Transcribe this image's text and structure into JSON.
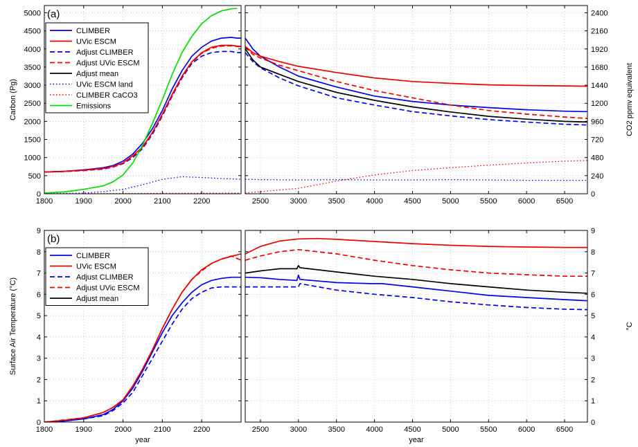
{
  "chart_data": [
    {
      "type": "line",
      "panel_tag": "(a)",
      "ylabel": "Carbon (Pg)",
      "ylabel_right": "CO2 ppmv equivalent",
      "xlabel": "",
      "left_xlim": [
        1800,
        2300
      ],
      "right_xlim": [
        2300,
        6800
      ],
      "ylim": [
        0,
        5200
      ],
      "left_xticks": [
        "1800",
        "1900",
        "2000",
        "2100",
        "2200"
      ],
      "right_xticks": [
        "2500",
        "3000",
        "3500",
        "4000",
        "4500",
        "5000",
        "5500",
        "6000",
        "6500"
      ],
      "yticks": [
        "0",
        "500",
        "1000",
        "1500",
        "2000",
        "2500",
        "3000",
        "3500",
        "4000",
        "4500",
        "5000"
      ],
      "yticks_right": [
        "0",
        "240",
        "480",
        "720",
        "960",
        "1200",
        "1440",
        "1680",
        "1920",
        "2160",
        "2400"
      ],
      "grid": true,
      "legend_position": "top-left",
      "series": [
        {
          "name": "CLIMBER",
          "color": "#0000ee",
          "dash": "solid",
          "x": [
            1800,
            1850,
            1900,
            1950,
            1975,
            2000,
            2025,
            2050,
            2075,
            2100,
            2125,
            2150,
            2175,
            2200,
            2225,
            2250,
            2275,
            2290,
            2300,
            2400,
            2500,
            2750,
            3000,
            3500,
            4000,
            4500,
            5000,
            5500,
            6000,
            6500,
            6800
          ],
          "y": [
            600,
            620,
            660,
            720,
            780,
            900,
            1100,
            1400,
            1800,
            2300,
            2900,
            3400,
            3800,
            4050,
            4220,
            4300,
            4320,
            4300,
            4300,
            4000,
            3800,
            3500,
            3250,
            2950,
            2700,
            2550,
            2450,
            2380,
            2320,
            2280,
            2270
          ]
        },
        {
          "name": "UVic ESCM",
          "color": "#ee0000",
          "dash": "solid",
          "x": [
            1800,
            1850,
            1900,
            1950,
            1975,
            2000,
            2025,
            2050,
            2075,
            2100,
            2125,
            2150,
            2175,
            2200,
            2225,
            2250,
            2275,
            2290,
            2300,
            2400,
            2500,
            2750,
            3000,
            3500,
            4000,
            4500,
            5000,
            5500,
            6000,
            6500,
            6800
          ],
          "y": [
            600,
            620,
            650,
            700,
            760,
            850,
            1050,
            1300,
            1700,
            2200,
            2750,
            3250,
            3650,
            3900,
            4050,
            4100,
            4100,
            4080,
            4070,
            3900,
            3800,
            3650,
            3520,
            3350,
            3200,
            3100,
            3050,
            3010,
            2990,
            2980,
            2970
          ]
        },
        {
          "name": "Adjust CLIMBER",
          "color": "#0000ee",
          "dash": "dashed",
          "x": [
            1800,
            1850,
            1900,
            1950,
            1975,
            2000,
            2025,
            2050,
            2075,
            2100,
            2125,
            2150,
            2175,
            2200,
            2225,
            2250,
            2275,
            2290,
            2300,
            2400,
            2500,
            2750,
            3000,
            3500,
            4000,
            4500,
            5000,
            5500,
            6000,
            6500,
            6800
          ],
          "y": [
            600,
            615,
            640,
            680,
            740,
            830,
            1000,
            1250,
            1650,
            2150,
            2700,
            3200,
            3600,
            3800,
            3900,
            3930,
            3930,
            3900,
            3900,
            3650,
            3480,
            3200,
            2980,
            2650,
            2450,
            2270,
            2150,
            2050,
            1980,
            1920,
            1900
          ]
        },
        {
          "name": "Adjust UVic ESCM",
          "color": "#ee0000",
          "dash": "dashed",
          "x": [
            1800,
            1850,
            1900,
            1950,
            1975,
            2000,
            2025,
            2050,
            2075,
            2100,
            2125,
            2150,
            2175,
            2200,
            2225,
            2250,
            2275,
            2290,
            2300,
            2400,
            2500,
            2750,
            3000,
            3500,
            4000,
            4500,
            5000,
            5500,
            6000,
            6500,
            6800
          ],
          "y": [
            600,
            615,
            645,
            690,
            750,
            840,
            1030,
            1280,
            1680,
            2180,
            2720,
            3230,
            3630,
            3880,
            4020,
            4080,
            4090,
            4070,
            4050,
            3850,
            3750,
            3550,
            3400,
            3100,
            2850,
            2650,
            2450,
            2300,
            2200,
            2120,
            2080
          ]
        },
        {
          "name": "Adjust mean",
          "color": "#000000",
          "dash": "solid",
          "x": [
            2300,
            2400,
            2500,
            2750,
            3000,
            3500,
            4000,
            4500,
            5000,
            5500,
            6000,
            6500,
            6800
          ],
          "y": [
            4000,
            3700,
            3500,
            3300,
            3100,
            2800,
            2580,
            2400,
            2260,
            2140,
            2060,
            2000,
            1980
          ]
        },
        {
          "name": "UVic ESCM land",
          "color": "#0000ee",
          "dash": "dotted",
          "x": [
            1800,
            1900,
            1950,
            2000,
            2050,
            2100,
            2150,
            2200,
            2250,
            2300,
            2500,
            3000,
            3500,
            4000,
            4500,
            5000,
            5500,
            6000,
            6500,
            6800
          ],
          "y": [
            0,
            20,
            60,
            120,
            250,
            400,
            470,
            450,
            420,
            400,
            390,
            380,
            390,
            380,
            380,
            390,
            380,
            370,
            370,
            370
          ]
        },
        {
          "name": "CLIMBER CaCO3",
          "color": "#ee0000",
          "dash": "dotted",
          "x": [
            1800,
            2000,
            2200,
            2300,
            2500,
            3000,
            3500,
            4000,
            4500,
            5000,
            5500,
            6000,
            6500,
            6800
          ],
          "y": [
            0,
            5,
            15,
            20,
            60,
            150,
            350,
            520,
            640,
            720,
            790,
            850,
            900,
            920
          ]
        },
        {
          "name": "Emissions",
          "color": "#00dd00",
          "dash": "solid",
          "x": [
            1800,
            1850,
            1900,
            1950,
            1975,
            2000,
            2025,
            2050,
            2075,
            2100,
            2125,
            2150,
            2175,
            2200,
            2225,
            2250,
            2275,
            2290
          ],
          "y": [
            20,
            50,
            120,
            220,
            330,
            520,
            850,
            1350,
            1950,
            2600,
            3300,
            3900,
            4350,
            4700,
            4920,
            5050,
            5110,
            5120
          ]
        }
      ]
    },
    {
      "type": "line",
      "panel_tag": "(b)",
      "ylabel": "Surface Air Temperature (°C)",
      "ylabel_right": "°C",
      "xlabel": "year",
      "left_xlim": [
        1800,
        2300
      ],
      "right_xlim": [
        2300,
        6800
      ],
      "ylim": [
        0,
        9
      ],
      "left_xticks": [
        "1800",
        "1900",
        "2000",
        "2100",
        "2200"
      ],
      "right_xticks": [
        "2500",
        "3000",
        "3500",
        "4000",
        "4500",
        "5000",
        "5500",
        "6000",
        "6500"
      ],
      "yticks": [
        "0",
        "1",
        "2",
        "3",
        "4",
        "5",
        "6",
        "7",
        "8",
        "9"
      ],
      "yticks_right": [
        "0",
        "1",
        "2",
        "3",
        "4",
        "5",
        "6",
        "7",
        "8",
        "9"
      ],
      "grid": true,
      "legend_position": "top-left",
      "series": [
        {
          "name": "CLIMBER",
          "color": "#0000ee",
          "dash": "solid",
          "x": [
            1800,
            1850,
            1900,
            1950,
            1975,
            2000,
            2025,
            2050,
            2075,
            2100,
            2125,
            2150,
            2175,
            2200,
            2225,
            2250,
            2275,
            2300,
            2500,
            2750,
            2980,
            3000,
            3020,
            3500,
            3950,
            4000,
            4100,
            4500,
            5000,
            5500,
            6000,
            6500,
            6800
          ],
          "y": [
            0,
            0.05,
            0.15,
            0.35,
            0.6,
            1.0,
            1.6,
            2.4,
            3.3,
            4.2,
            5.0,
            5.6,
            6.1,
            6.45,
            6.65,
            6.75,
            6.8,
            6.8,
            6.78,
            6.7,
            6.65,
            6.9,
            6.7,
            6.55,
            6.5,
            6.5,
            6.5,
            6.35,
            6.15,
            5.95,
            5.85,
            5.75,
            5.7
          ]
        },
        {
          "name": "UVic ESCM",
          "color": "#ee0000",
          "dash": "solid",
          "x": [
            1800,
            1850,
            1900,
            1950,
            1975,
            2000,
            2025,
            2050,
            2075,
            2100,
            2125,
            2150,
            2175,
            2200,
            2225,
            2250,
            2275,
            2300,
            2500,
            2750,
            3000,
            3250,
            3500,
            4000,
            4500,
            5000,
            5500,
            6000,
            6500,
            6800
          ],
          "y": [
            0,
            0.08,
            0.2,
            0.45,
            0.7,
            1.05,
            1.7,
            2.5,
            3.4,
            4.4,
            5.3,
            6.1,
            6.7,
            7.15,
            7.45,
            7.65,
            7.78,
            7.9,
            8.25,
            8.5,
            8.6,
            8.62,
            8.58,
            8.48,
            8.38,
            8.3,
            8.25,
            8.22,
            8.2,
            8.2
          ]
        },
        {
          "name": "Adjust CLIMBER",
          "color": "#0000ee",
          "dash": "dashed",
          "x": [
            1800,
            1850,
            1900,
            1950,
            1975,
            2000,
            2025,
            2050,
            2075,
            2100,
            2125,
            2150,
            2175,
            2200,
            2225,
            2250,
            2275,
            2300,
            2500,
            2750,
            3000,
            3020,
            3500,
            4000,
            4500,
            5000,
            5500,
            6000,
            6500,
            6800
          ],
          "y": [
            0,
            0.05,
            0.15,
            0.3,
            0.55,
            0.9,
            1.4,
            2.2,
            3.0,
            3.8,
            4.6,
            5.3,
            5.8,
            6.1,
            6.3,
            6.35,
            6.35,
            6.35,
            6.35,
            6.35,
            6.35,
            6.5,
            6.2,
            6.0,
            5.85,
            5.65,
            5.5,
            5.38,
            5.3,
            5.28
          ]
        },
        {
          "name": "Adjust UVic ESCM",
          "color": "#ee0000",
          "dash": "dashed",
          "x": [
            1800,
            1850,
            1900,
            1950,
            1975,
            2000,
            2025,
            2050,
            2075,
            2100,
            2125,
            2150,
            2175,
            2200,
            2225,
            2250,
            2275,
            2300,
            2500,
            2750,
            3000,
            3500,
            4000,
            4500,
            5000,
            5500,
            6000,
            6500,
            6800
          ],
          "y": [
            0,
            0.1,
            0.2,
            0.45,
            0.7,
            1.05,
            1.7,
            2.5,
            3.4,
            4.4,
            5.3,
            6.1,
            6.7,
            7.1,
            7.45,
            7.65,
            7.8,
            7.6,
            7.8,
            8.0,
            8.1,
            7.9,
            7.6,
            7.35,
            7.15,
            7.0,
            6.92,
            6.85,
            6.85
          ]
        },
        {
          "name": "Adjust mean",
          "color": "#000000",
          "dash": "solid",
          "x": [
            2300,
            2500,
            2750,
            2980,
            3000,
            3020,
            3500,
            4000,
            4500,
            5000,
            5500,
            6000,
            6500,
            6800
          ],
          "y": [
            7.0,
            7.1,
            7.2,
            7.2,
            7.35,
            7.25,
            7.05,
            6.85,
            6.7,
            6.5,
            6.35,
            6.2,
            6.1,
            6.05
          ]
        }
      ]
    }
  ]
}
